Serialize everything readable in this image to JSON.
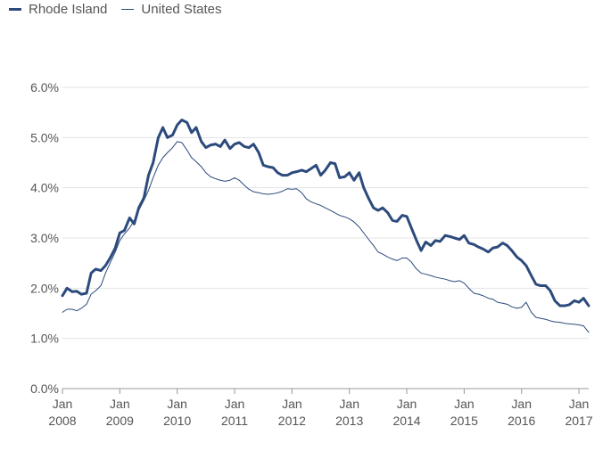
{
  "chart_data": {
    "type": "line",
    "title": "",
    "xlabel": "",
    "ylabel": "",
    "ylim": [
      0,
      6
    ],
    "y_ticks": [
      "0.0%",
      "1.0%",
      "2.0%",
      "3.0%",
      "4.0%",
      "5.0%",
      "6.0%"
    ],
    "x_ticks": [
      {
        "month": "Jan",
        "year": "2008",
        "t": 2008.0
      },
      {
        "month": "Jan",
        "year": "2009",
        "t": 2009.0
      },
      {
        "month": "Jan",
        "year": "2010",
        "t": 2010.0
      },
      {
        "month": "Jan",
        "year": "2011",
        "t": 2011.0
      },
      {
        "month": "Jan",
        "year": "2012",
        "t": 2012.0
      },
      {
        "month": "Jan",
        "year": "2013",
        "t": 2013.0
      },
      {
        "month": "Jan",
        "year": "2014",
        "t": 2014.0
      },
      {
        "month": "Jan",
        "year": "2015",
        "t": 2015.0
      },
      {
        "month": "Jan",
        "year": "2016",
        "t": 2016.0
      },
      {
        "month": "Jan",
        "year": "2017",
        "t": 2017.0
      }
    ],
    "x_range": [
      2008.0,
      2017.17
    ],
    "grid": true,
    "legend_position": "top-left",
    "series": [
      {
        "name": "Rhode Island",
        "color": "#2c4a7c",
        "width": 3,
        "points": [
          [
            2008.0,
            1.85
          ],
          [
            2008.08,
            2.0
          ],
          [
            2008.17,
            1.93
          ],
          [
            2008.25,
            1.94
          ],
          [
            2008.33,
            1.88
          ],
          [
            2008.42,
            1.9
          ],
          [
            2008.5,
            2.3
          ],
          [
            2008.58,
            2.38
          ],
          [
            2008.67,
            2.35
          ],
          [
            2008.75,
            2.45
          ],
          [
            2008.83,
            2.6
          ],
          [
            2008.92,
            2.8
          ],
          [
            2009.0,
            3.1
          ],
          [
            2009.08,
            3.15
          ],
          [
            2009.17,
            3.4
          ],
          [
            2009.25,
            3.28
          ],
          [
            2009.33,
            3.6
          ],
          [
            2009.42,
            3.8
          ],
          [
            2009.5,
            4.25
          ],
          [
            2009.58,
            4.5
          ],
          [
            2009.67,
            5.0
          ],
          [
            2009.75,
            5.2
          ],
          [
            2009.83,
            5.0
          ],
          [
            2009.92,
            5.05
          ],
          [
            2010.0,
            5.25
          ],
          [
            2010.08,
            5.35
          ],
          [
            2010.17,
            5.3
          ],
          [
            2010.25,
            5.1
          ],
          [
            2010.33,
            5.2
          ],
          [
            2010.42,
            4.92
          ],
          [
            2010.5,
            4.8
          ],
          [
            2010.58,
            4.85
          ],
          [
            2010.67,
            4.87
          ],
          [
            2010.75,
            4.82
          ],
          [
            2010.83,
            4.95
          ],
          [
            2010.92,
            4.78
          ],
          [
            2011.0,
            4.87
          ],
          [
            2011.08,
            4.9
          ],
          [
            2011.17,
            4.82
          ],
          [
            2011.25,
            4.8
          ],
          [
            2011.33,
            4.87
          ],
          [
            2011.42,
            4.7
          ],
          [
            2011.5,
            4.45
          ],
          [
            2011.58,
            4.42
          ],
          [
            2011.67,
            4.4
          ],
          [
            2011.75,
            4.3
          ],
          [
            2011.83,
            4.25
          ],
          [
            2011.92,
            4.25
          ],
          [
            2012.0,
            4.3
          ],
          [
            2012.08,
            4.32
          ],
          [
            2012.17,
            4.35
          ],
          [
            2012.25,
            4.32
          ],
          [
            2012.33,
            4.38
          ],
          [
            2012.42,
            4.45
          ],
          [
            2012.5,
            4.25
          ],
          [
            2012.58,
            4.35
          ],
          [
            2012.67,
            4.5
          ],
          [
            2012.75,
            4.48
          ],
          [
            2012.83,
            4.2
          ],
          [
            2012.92,
            4.22
          ],
          [
            2013.0,
            4.3
          ],
          [
            2013.08,
            4.15
          ],
          [
            2013.17,
            4.3
          ],
          [
            2013.25,
            4.0
          ],
          [
            2013.33,
            3.8
          ],
          [
            2013.42,
            3.6
          ],
          [
            2013.5,
            3.55
          ],
          [
            2013.58,
            3.6
          ],
          [
            2013.67,
            3.5
          ],
          [
            2013.75,
            3.35
          ],
          [
            2013.83,
            3.33
          ],
          [
            2013.92,
            3.45
          ],
          [
            2014.0,
            3.43
          ],
          [
            2014.08,
            3.2
          ],
          [
            2014.17,
            2.95
          ],
          [
            2014.25,
            2.75
          ],
          [
            2014.33,
            2.92
          ],
          [
            2014.42,
            2.85
          ],
          [
            2014.5,
            2.95
          ],
          [
            2014.58,
            2.93
          ],
          [
            2014.67,
            3.05
          ],
          [
            2014.75,
            3.03
          ],
          [
            2014.83,
            3.0
          ],
          [
            2014.92,
            2.97
          ],
          [
            2015.0,
            3.05
          ],
          [
            2015.08,
            2.9
          ],
          [
            2015.17,
            2.87
          ],
          [
            2015.25,
            2.82
          ],
          [
            2015.33,
            2.78
          ],
          [
            2015.42,
            2.72
          ],
          [
            2015.5,
            2.8
          ],
          [
            2015.58,
            2.82
          ],
          [
            2015.67,
            2.9
          ],
          [
            2015.75,
            2.85
          ],
          [
            2015.83,
            2.75
          ],
          [
            2015.92,
            2.62
          ],
          [
            2016.0,
            2.55
          ],
          [
            2016.08,
            2.45
          ],
          [
            2016.17,
            2.25
          ],
          [
            2016.25,
            2.08
          ],
          [
            2016.33,
            2.05
          ],
          [
            2016.42,
            2.05
          ],
          [
            2016.5,
            1.95
          ],
          [
            2016.58,
            1.75
          ],
          [
            2016.67,
            1.65
          ],
          [
            2016.75,
            1.65
          ],
          [
            2016.83,
            1.67
          ],
          [
            2016.92,
            1.75
          ],
          [
            2017.0,
            1.72
          ],
          [
            2017.08,
            1.8
          ],
          [
            2017.17,
            1.65
          ]
        ]
      },
      {
        "name": "United States",
        "color": "#2c4a7c",
        "width": 1,
        "points": [
          [
            2008.0,
            1.52
          ],
          [
            2008.08,
            1.58
          ],
          [
            2008.17,
            1.58
          ],
          [
            2008.25,
            1.55
          ],
          [
            2008.33,
            1.6
          ],
          [
            2008.42,
            1.68
          ],
          [
            2008.5,
            1.88
          ],
          [
            2008.58,
            1.95
          ],
          [
            2008.67,
            2.05
          ],
          [
            2008.75,
            2.3
          ],
          [
            2008.83,
            2.5
          ],
          [
            2008.92,
            2.72
          ],
          [
            2009.0,
            2.95
          ],
          [
            2009.08,
            3.08
          ],
          [
            2009.17,
            3.2
          ],
          [
            2009.25,
            3.35
          ],
          [
            2009.33,
            3.55
          ],
          [
            2009.42,
            3.75
          ],
          [
            2009.5,
            3.95
          ],
          [
            2009.58,
            4.2
          ],
          [
            2009.67,
            4.45
          ],
          [
            2009.75,
            4.6
          ],
          [
            2009.83,
            4.7
          ],
          [
            2009.92,
            4.8
          ],
          [
            2010.0,
            4.92
          ],
          [
            2010.08,
            4.9
          ],
          [
            2010.17,
            4.75
          ],
          [
            2010.25,
            4.6
          ],
          [
            2010.33,
            4.52
          ],
          [
            2010.42,
            4.42
          ],
          [
            2010.5,
            4.3
          ],
          [
            2010.58,
            4.22
          ],
          [
            2010.67,
            4.18
          ],
          [
            2010.75,
            4.15
          ],
          [
            2010.83,
            4.13
          ],
          [
            2010.92,
            4.15
          ],
          [
            2011.0,
            4.2
          ],
          [
            2011.08,
            4.15
          ],
          [
            2011.17,
            4.05
          ],
          [
            2011.25,
            3.97
          ],
          [
            2011.33,
            3.92
          ],
          [
            2011.42,
            3.9
          ],
          [
            2011.5,
            3.88
          ],
          [
            2011.58,
            3.87
          ],
          [
            2011.67,
            3.88
          ],
          [
            2011.75,
            3.9
          ],
          [
            2011.83,
            3.93
          ],
          [
            2011.92,
            3.98
          ],
          [
            2012.0,
            3.97
          ],
          [
            2012.08,
            3.98
          ],
          [
            2012.17,
            3.9
          ],
          [
            2012.25,
            3.78
          ],
          [
            2012.33,
            3.72
          ],
          [
            2012.42,
            3.68
          ],
          [
            2012.5,
            3.65
          ],
          [
            2012.58,
            3.6
          ],
          [
            2012.67,
            3.55
          ],
          [
            2012.75,
            3.5
          ],
          [
            2012.83,
            3.45
          ],
          [
            2012.92,
            3.42
          ],
          [
            2013.0,
            3.38
          ],
          [
            2013.08,
            3.32
          ],
          [
            2013.17,
            3.22
          ],
          [
            2013.25,
            3.1
          ],
          [
            2013.33,
            2.98
          ],
          [
            2013.42,
            2.85
          ],
          [
            2013.5,
            2.72
          ],
          [
            2013.58,
            2.68
          ],
          [
            2013.67,
            2.62
          ],
          [
            2013.75,
            2.58
          ],
          [
            2013.83,
            2.55
          ],
          [
            2013.92,
            2.6
          ],
          [
            2014.0,
            2.6
          ],
          [
            2014.08,
            2.52
          ],
          [
            2014.17,
            2.38
          ],
          [
            2014.25,
            2.3
          ],
          [
            2014.33,
            2.28
          ],
          [
            2014.42,
            2.25
          ],
          [
            2014.5,
            2.22
          ],
          [
            2014.58,
            2.2
          ],
          [
            2014.67,
            2.18
          ],
          [
            2014.75,
            2.15
          ],
          [
            2014.83,
            2.13
          ],
          [
            2014.92,
            2.15
          ],
          [
            2015.0,
            2.1
          ],
          [
            2015.08,
            2.0
          ],
          [
            2015.17,
            1.9
          ],
          [
            2015.25,
            1.88
          ],
          [
            2015.33,
            1.85
          ],
          [
            2015.42,
            1.8
          ],
          [
            2015.5,
            1.78
          ],
          [
            2015.58,
            1.72
          ],
          [
            2015.67,
            1.7
          ],
          [
            2015.75,
            1.68
          ],
          [
            2015.83,
            1.63
          ],
          [
            2015.92,
            1.6
          ],
          [
            2016.0,
            1.62
          ],
          [
            2016.08,
            1.72
          ],
          [
            2016.17,
            1.52
          ],
          [
            2016.25,
            1.42
          ],
          [
            2016.33,
            1.4
          ],
          [
            2016.42,
            1.38
          ],
          [
            2016.5,
            1.35
          ],
          [
            2016.58,
            1.33
          ],
          [
            2016.67,
            1.32
          ],
          [
            2016.75,
            1.3
          ],
          [
            2016.83,
            1.29
          ],
          [
            2016.92,
            1.28
          ],
          [
            2017.0,
            1.27
          ],
          [
            2017.08,
            1.25
          ],
          [
            2017.17,
            1.12
          ]
        ]
      }
    ]
  }
}
